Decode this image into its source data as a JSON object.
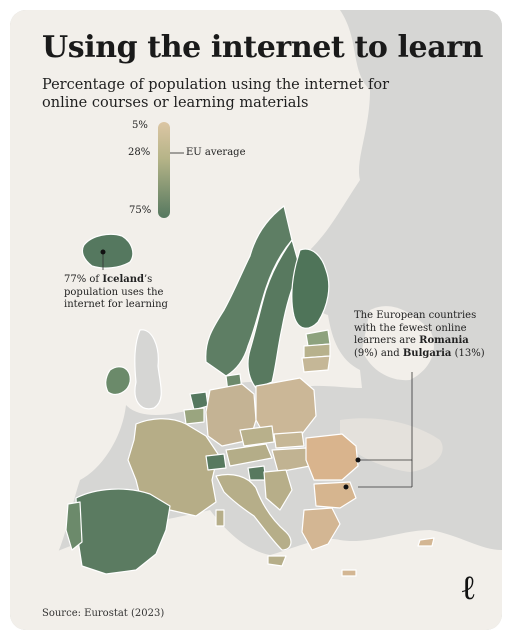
{
  "title": "Using the internet to learn",
  "subtitle": "Percentage of population using the internet for online courses or learning materials",
  "legend": {
    "min_label": "5%",
    "avg_value_label": "28%",
    "avg_text": "EU average",
    "max_label": "75%",
    "colors": {
      "low": "#dcc6a4",
      "mid": "#b6b488",
      "high": "#55785f"
    }
  },
  "annotations": {
    "iceland": {
      "prefix": "77% of ",
      "country": "Iceland",
      "suffix": "’s population uses the internet for learning"
    },
    "fewest": {
      "intro": "The European countries with the fewest online learners are ",
      "country1": "Romania",
      "value1": " (9%)",
      "joiner": " and ",
      "country2": "Bulgaria",
      "value2": " (13%)"
    }
  },
  "source": "Source: Eurostat (2023)",
  "logo": "ℓ",
  "colors": {
    "map_background": "#f2efea",
    "land_no_data": "#d6d6d4",
    "border": "#ffffff"
  },
  "map_data": [
    {
      "id": "IS",
      "value": 77
    },
    {
      "id": "RO",
      "value": 9
    },
    {
      "id": "BG",
      "value": 13
    }
  ]
}
